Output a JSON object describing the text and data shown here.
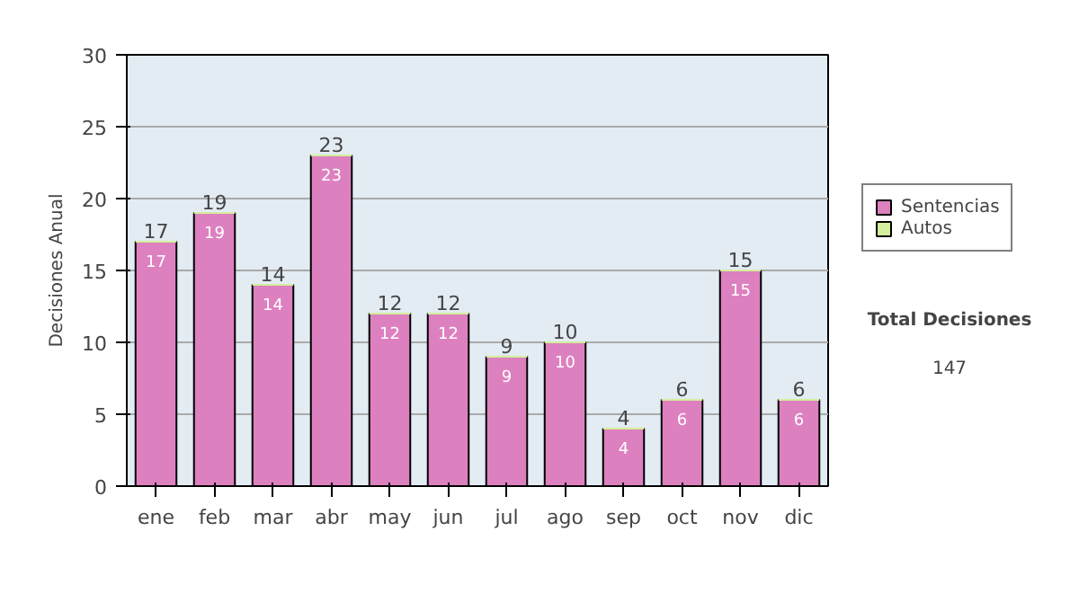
{
  "chart_data": {
    "type": "bar",
    "stacked": true,
    "ylabel": "Decisiones Anual",
    "categories": [
      "ene",
      "feb",
      "mar",
      "abr",
      "may",
      "jun",
      "jul",
      "ago",
      "sep",
      "oct",
      "nov",
      "dic"
    ],
    "series": [
      {
        "name": "Sentencias",
        "color": "#dd80bf",
        "values": [
          17,
          19,
          14,
          23,
          12,
          12,
          9,
          10,
          4,
          6,
          15,
          6
        ],
        "value_labels": [
          "17",
          "19",
          "14",
          "23",
          "12",
          "12",
          "9",
          "10",
          "4",
          "6",
          "15",
          "6"
        ]
      },
      {
        "name": "Autos",
        "color": "#d4ee9c",
        "values": [
          0,
          0,
          0,
          0,
          0,
          0,
          0,
          0,
          0,
          0,
          0,
          0
        ]
      }
    ],
    "totals": [
      "17",
      "19",
      "14",
      "23",
      "12",
      "12",
      "9",
      "10",
      "4",
      "6",
      "15",
      "6"
    ],
    "ylim": [
      0,
      30
    ],
    "yticks": [
      0,
      5,
      10,
      15,
      20,
      25,
      30
    ],
    "grid": "y",
    "legend": "right",
    "annotations": [
      "Total Decisiones",
      "147"
    ]
  }
}
